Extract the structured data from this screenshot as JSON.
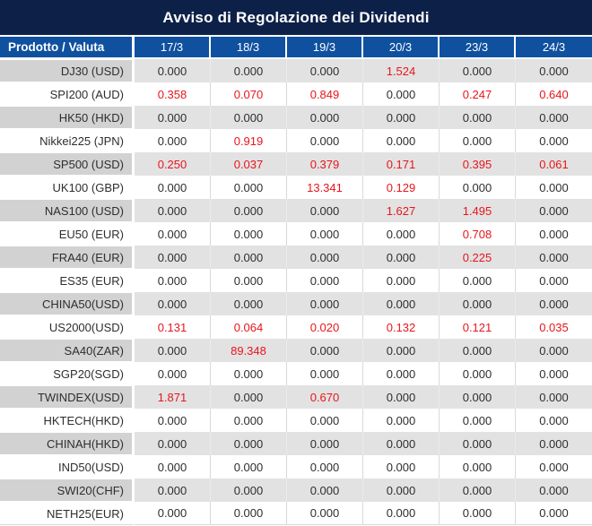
{
  "window": {
    "title": "Avviso di Regolazione dei Dividendi"
  },
  "colors": {
    "title_bg": "#0d2148",
    "header_bg": "#0f519f",
    "header_text": "#ffffff",
    "row_gray": "#e2e2e2",
    "label_gray": "#d2d2d2",
    "row_white": "#ffffff",
    "grid_line": "#d9d9d9",
    "value_text": "#2e2e2e",
    "dividend_red": "#e8151c"
  },
  "table": {
    "columns": [
      "Prodotto / Valuta",
      "17/3",
      "18/3",
      "19/3",
      "20/3",
      "23/3",
      "24/3"
    ],
    "rows": [
      {
        "product": "DJ30 (USD)",
        "values": [
          "0.000",
          "0.000",
          "0.000",
          "1.524",
          "0.000",
          "0.000"
        ],
        "red": [
          false,
          false,
          false,
          true,
          false,
          false
        ]
      },
      {
        "product": "SPI200 (AUD)",
        "values": [
          "0.358",
          "0.070",
          "0.849",
          "0.000",
          "0.247",
          "0.640"
        ],
        "red": [
          true,
          true,
          true,
          false,
          true,
          true
        ]
      },
      {
        "product": "HK50 (HKD)",
        "values": [
          "0.000",
          "0.000",
          "0.000",
          "0.000",
          "0.000",
          "0.000"
        ],
        "red": [
          false,
          false,
          false,
          false,
          false,
          false
        ]
      },
      {
        "product": "Nikkei225 (JPN)",
        "values": [
          "0.000",
          "0.919",
          "0.000",
          "0.000",
          "0.000",
          "0.000"
        ],
        "red": [
          false,
          true,
          false,
          false,
          false,
          false
        ]
      },
      {
        "product": "SP500 (USD)",
        "values": [
          "0.250",
          "0.037",
          "0.379",
          "0.171",
          "0.395",
          "0.061"
        ],
        "red": [
          true,
          true,
          true,
          true,
          true,
          true
        ]
      },
      {
        "product": "UK100 (GBP)",
        "values": [
          "0.000",
          "0.000",
          "13.341",
          "0.129",
          "0.000",
          "0.000"
        ],
        "red": [
          false,
          false,
          true,
          true,
          false,
          false
        ]
      },
      {
        "product": "NAS100 (USD)",
        "values": [
          "0.000",
          "0.000",
          "0.000",
          "1.627",
          "1.495",
          "0.000"
        ],
        "red": [
          false,
          false,
          false,
          true,
          true,
          false
        ]
      },
      {
        "product": "EU50 (EUR)",
        "values": [
          "0.000",
          "0.000",
          "0.000",
          "0.000",
          "0.708",
          "0.000"
        ],
        "red": [
          false,
          false,
          false,
          false,
          true,
          false
        ]
      },
      {
        "product": "FRA40 (EUR)",
        "values": [
          "0.000",
          "0.000",
          "0.000",
          "0.000",
          "0.225",
          "0.000"
        ],
        "red": [
          false,
          false,
          false,
          false,
          true,
          false
        ]
      },
      {
        "product": "ES35 (EUR)",
        "values": [
          "0.000",
          "0.000",
          "0.000",
          "0.000",
          "0.000",
          "0.000"
        ],
        "red": [
          false,
          false,
          false,
          false,
          false,
          false
        ]
      },
      {
        "product": "CHINA50(USD)",
        "values": [
          "0.000",
          "0.000",
          "0.000",
          "0.000",
          "0.000",
          "0.000"
        ],
        "red": [
          false,
          false,
          false,
          false,
          false,
          false
        ]
      },
      {
        "product": "US2000(USD)",
        "values": [
          "0.131",
          "0.064",
          "0.020",
          "0.132",
          "0.121",
          "0.035"
        ],
        "red": [
          true,
          true,
          true,
          true,
          true,
          true
        ]
      },
      {
        "product": "SA40(ZAR)",
        "values": [
          "0.000",
          "89.348",
          "0.000",
          "0.000",
          "0.000",
          "0.000"
        ],
        "red": [
          false,
          true,
          false,
          false,
          false,
          false
        ]
      },
      {
        "product": "SGP20(SGD)",
        "values": [
          "0.000",
          "0.000",
          "0.000",
          "0.000",
          "0.000",
          "0.000"
        ],
        "red": [
          false,
          false,
          false,
          false,
          false,
          false
        ]
      },
      {
        "product": "TWINDEX(USD)",
        "values": [
          "1.871",
          "0.000",
          "0.670",
          "0.000",
          "0.000",
          "0.000"
        ],
        "red": [
          true,
          false,
          true,
          false,
          false,
          false
        ]
      },
      {
        "product": "HKTECH(HKD)",
        "values": [
          "0.000",
          "0.000",
          "0.000",
          "0.000",
          "0.000",
          "0.000"
        ],
        "red": [
          false,
          false,
          false,
          false,
          false,
          false
        ]
      },
      {
        "product": "CHINAH(HKD)",
        "values": [
          "0.000",
          "0.000",
          "0.000",
          "0.000",
          "0.000",
          "0.000"
        ],
        "red": [
          false,
          false,
          false,
          false,
          false,
          false
        ]
      },
      {
        "product": "IND50(USD)",
        "values": [
          "0.000",
          "0.000",
          "0.000",
          "0.000",
          "0.000",
          "0.000"
        ],
        "red": [
          false,
          false,
          false,
          false,
          false,
          false
        ]
      },
      {
        "product": "SWI20(CHF)",
        "values": [
          "0.000",
          "0.000",
          "0.000",
          "0.000",
          "0.000",
          "0.000"
        ],
        "red": [
          false,
          false,
          false,
          false,
          false,
          false
        ]
      },
      {
        "product": "NETH25(EUR)",
        "values": [
          "0.000",
          "0.000",
          "0.000",
          "0.000",
          "0.000",
          "0.000"
        ],
        "red": [
          false,
          false,
          false,
          false,
          false,
          false
        ]
      }
    ]
  }
}
